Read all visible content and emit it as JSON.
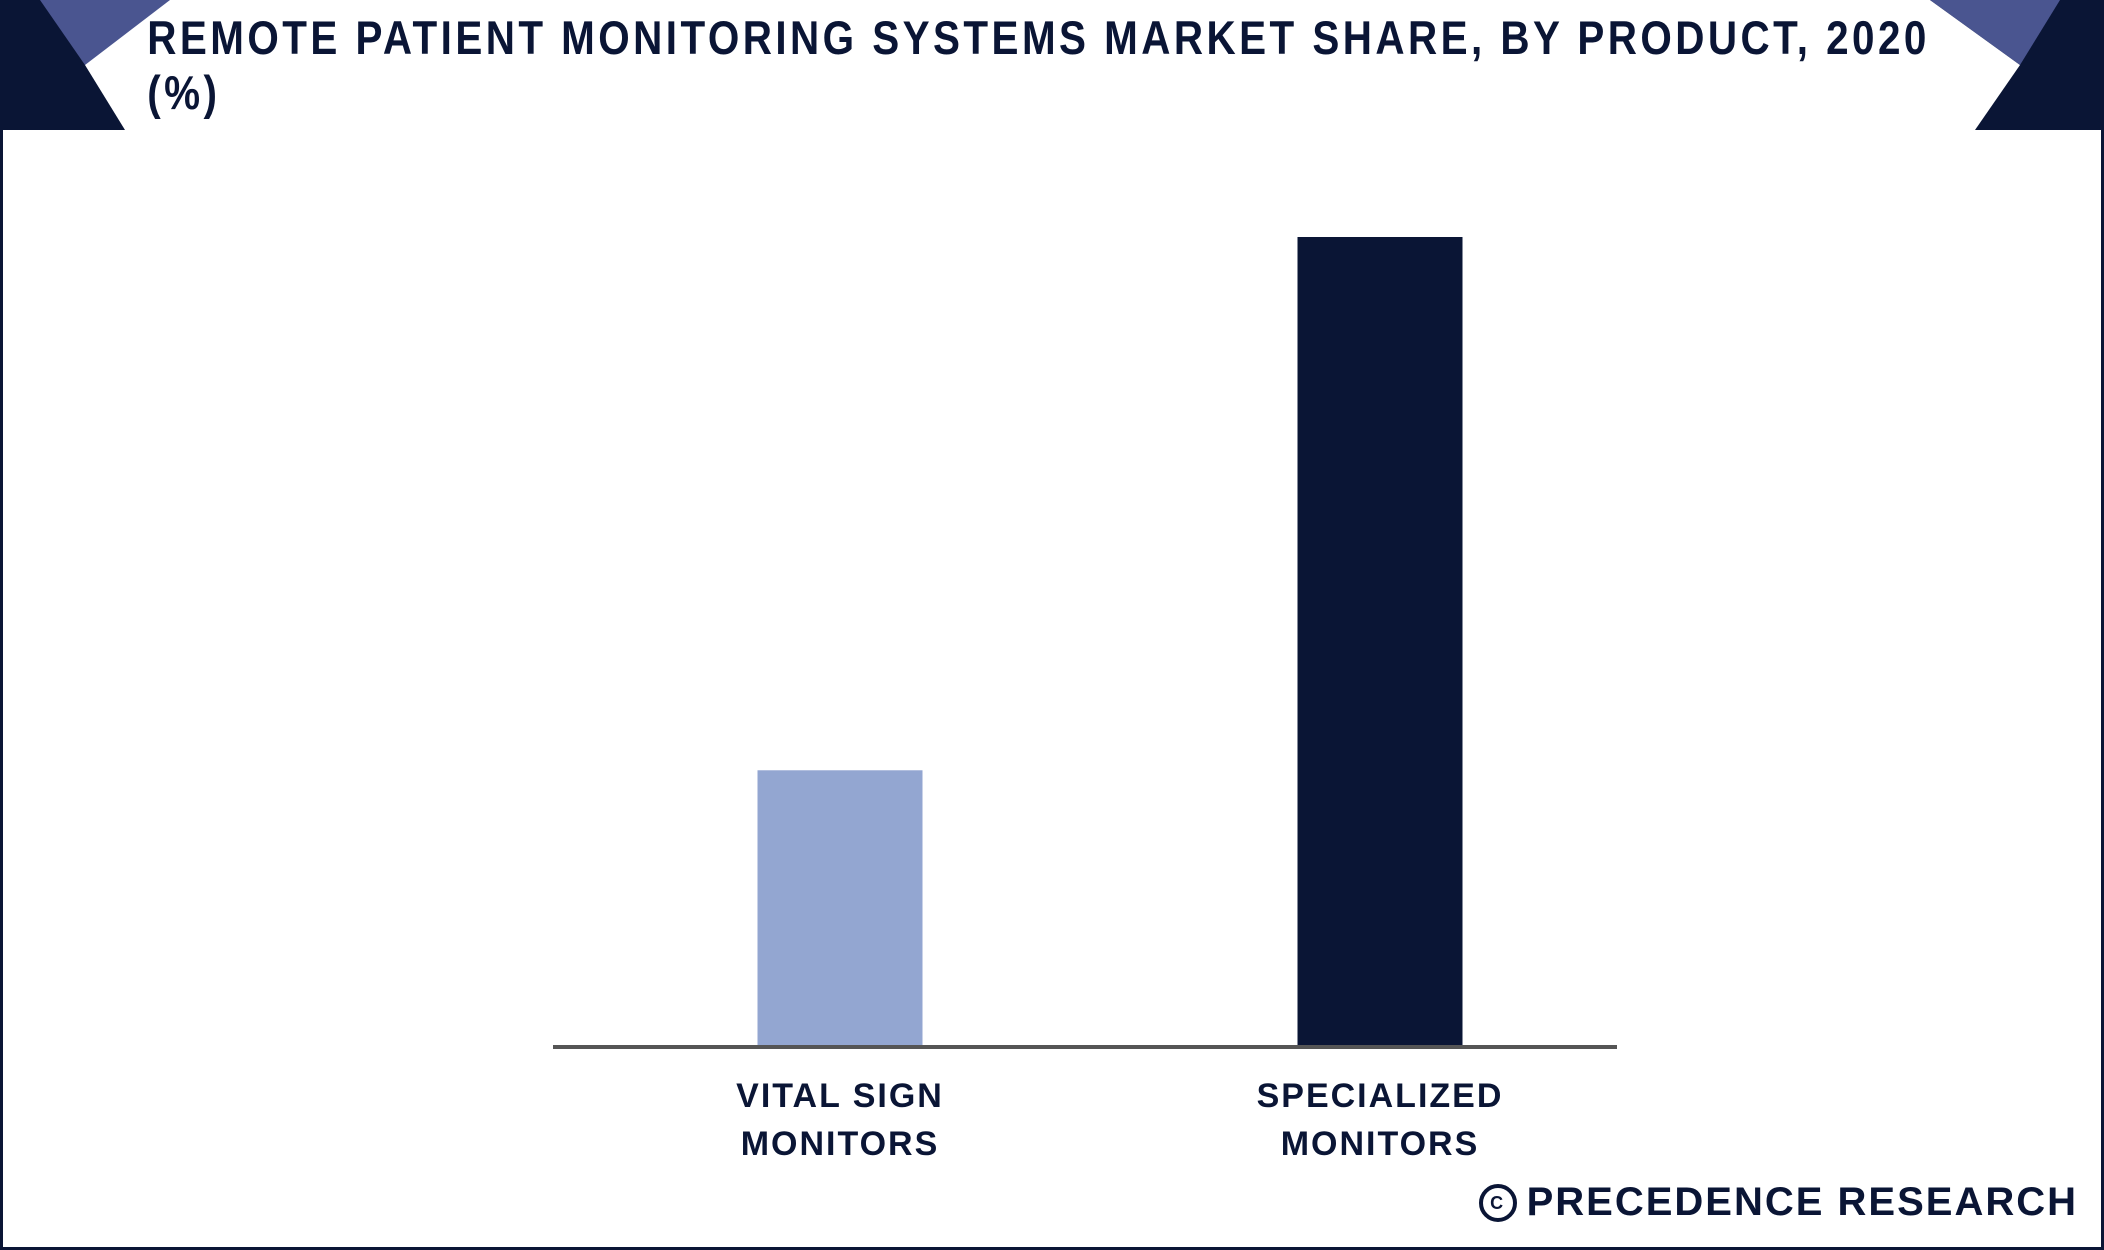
{
  "title": "REMOTE PATIENT MONITORING SYSTEMS MARKET SHARE, BY PRODUCT, 2020 (%)",
  "brand": "PRECEDENCE RESEARCH",
  "brand_icon": "copyright-icon",
  "colors": {
    "navy": "#0a1535",
    "accent": "#4a5590",
    "light_bar": "#93a6d1",
    "dark_bar": "#0a1535",
    "axis": "#555555"
  },
  "chart_data": {
    "type": "bar",
    "categories": [
      "VITAL SIGN MONITORS",
      "SPECIALIZED MONITORS"
    ],
    "category_lines": [
      [
        "VITAL SIGN",
        "MONITORS"
      ],
      [
        "SPECIALIZED",
        "MONITORS"
      ]
    ],
    "values": [
      34,
      100
    ],
    "bar_colors": [
      "#93a6d1",
      "#0a1535"
    ],
    "ylim": [
      0,
      100
    ],
    "title": "REMOTE PATIENT MONITORING SYSTEMS MARKET SHARE, BY PRODUCT, 2020 (%)",
    "xlabel": "",
    "ylabel": "",
    "grid": false,
    "legend": "none"
  }
}
